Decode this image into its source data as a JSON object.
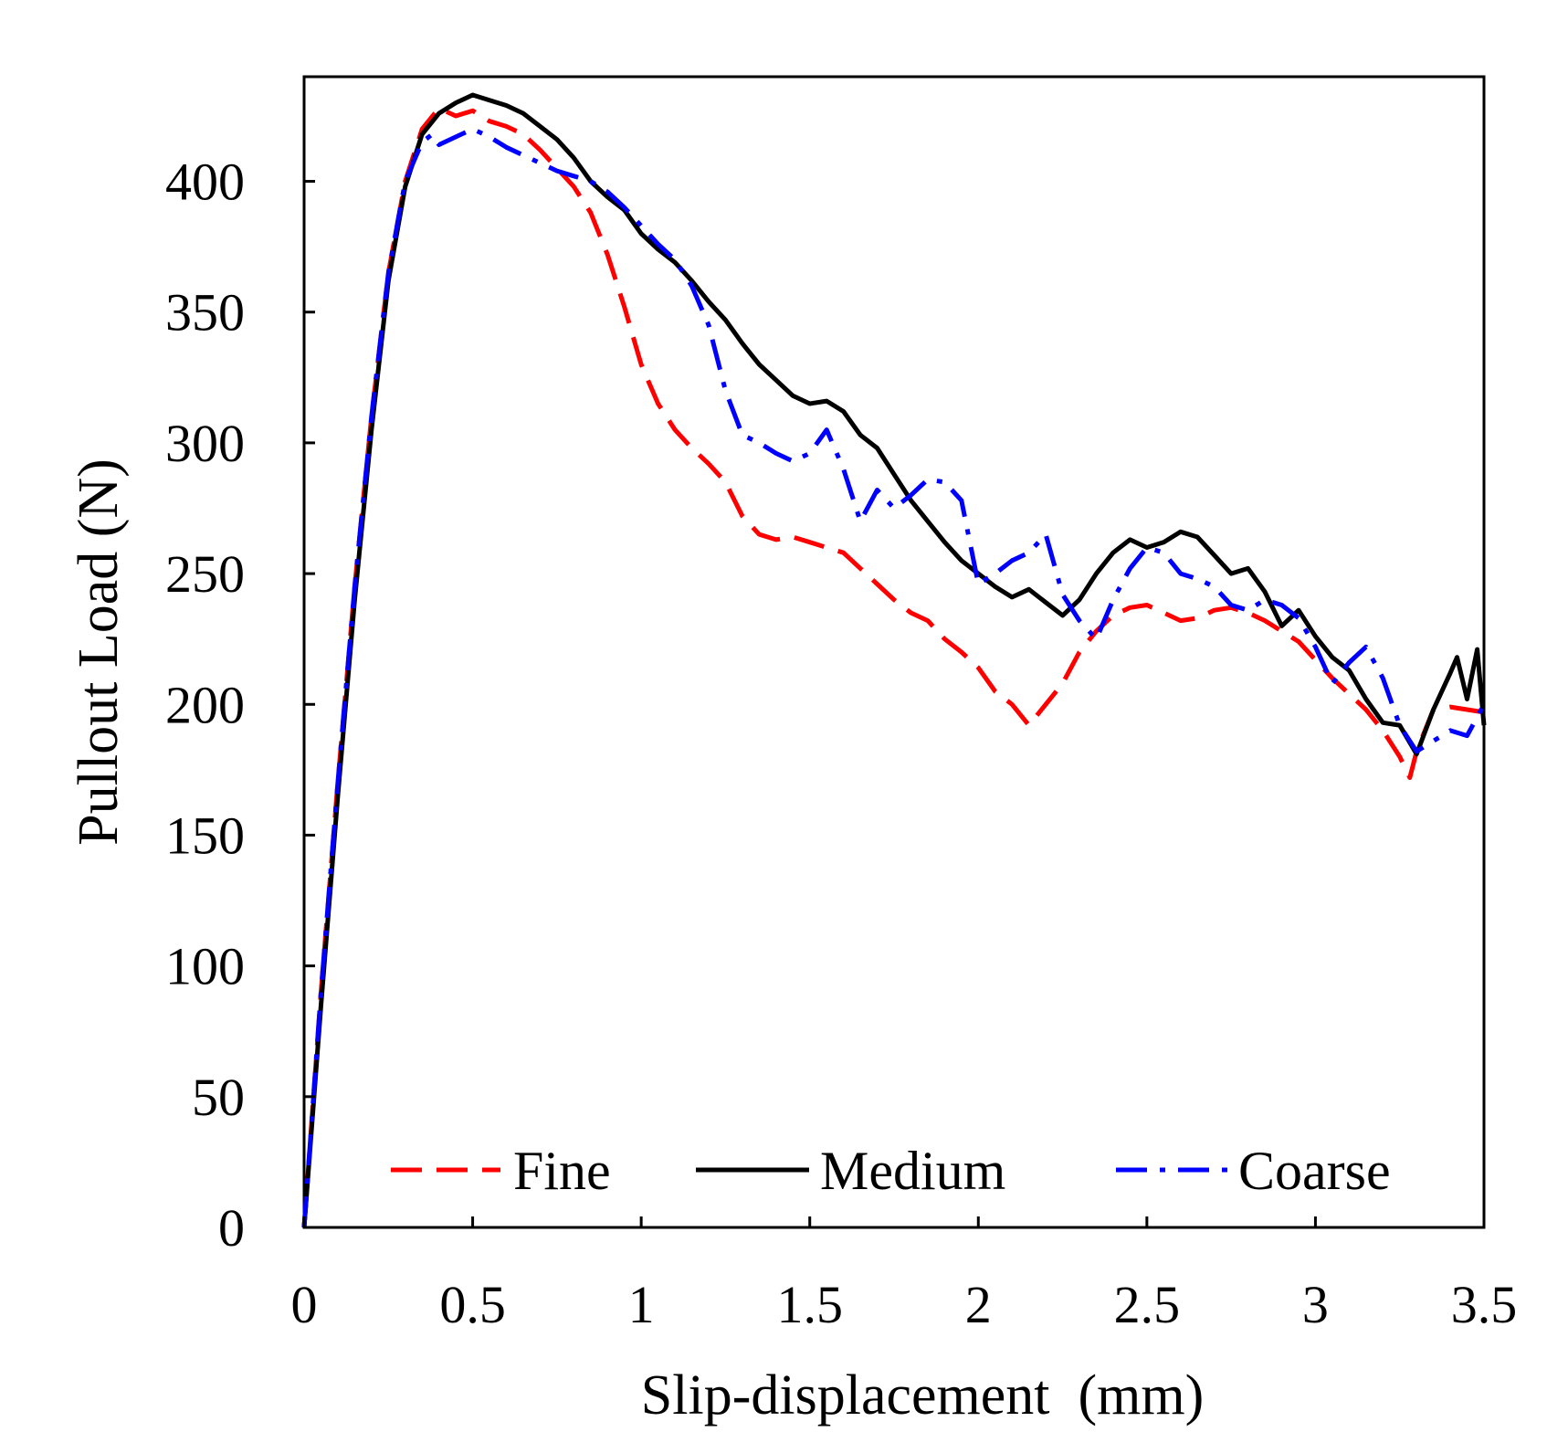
{
  "chart_data": {
    "type": "line",
    "title": "",
    "xlabel": "Slip-displacement  (mm)",
    "ylabel": "Pullout Load (N)",
    "xlim": [
      0,
      3.5
    ],
    "ylim": [
      0,
      440
    ],
    "xticks": [
      "0",
      "0.5",
      "1",
      "1.5",
      "2",
      "2.5",
      "3",
      "3.5"
    ],
    "yticks": [
      "0",
      "50",
      "100",
      "150",
      "200",
      "250",
      "300",
      "350",
      "400"
    ],
    "grid": false,
    "legend_position": "bottom",
    "series": [
      {
        "name": "Fine",
        "color": "#ff0000",
        "style": "dashed",
        "x": [
          0,
          0.05,
          0.1,
          0.15,
          0.2,
          0.25,
          0.3,
          0.35,
          0.4,
          0.45,
          0.5,
          0.55,
          0.6,
          0.65,
          0.7,
          0.75,
          0.8,
          0.85,
          0.9,
          0.95,
          1.0,
          1.05,
          1.1,
          1.15,
          1.2,
          1.25,
          1.3,
          1.35,
          1.4,
          1.45,
          1.5,
          1.55,
          1.6,
          1.65,
          1.7,
          1.75,
          1.8,
          1.85,
          1.9,
          1.95,
          2.0,
          2.05,
          2.1,
          2.15,
          2.2,
          2.25,
          2.3,
          2.35,
          2.4,
          2.45,
          2.5,
          2.55,
          2.6,
          2.65,
          2.7,
          2.75,
          2.8,
          2.85,
          2.9,
          2.95,
          3.0,
          3.05,
          3.1,
          3.15,
          3.2,
          3.25,
          3.28,
          3.3,
          3.35,
          3.4,
          3.45,
          3.5
        ],
        "y": [
          0,
          90,
          170,
          245,
          310,
          365,
          400,
          420,
          428,
          425,
          427,
          423,
          421,
          418,
          412,
          405,
          398,
          388,
          372,
          352,
          330,
          315,
          305,
          298,
          292,
          285,
          272,
          265,
          263,
          264,
          262,
          260,
          258,
          252,
          246,
          240,
          235,
          232,
          225,
          220,
          214,
          205,
          200,
          192,
          200,
          208,
          220,
          228,
          234,
          237,
          238,
          235,
          232,
          233,
          236,
          237,
          235,
          232,
          228,
          224,
          217,
          210,
          204,
          198,
          190,
          180,
          172,
          182,
          198,
          199,
          198,
          197
        ]
      },
      {
        "name": "Medium",
        "color": "#000000",
        "style": "solid",
        "x": [
          0,
          0.05,
          0.1,
          0.15,
          0.2,
          0.25,
          0.3,
          0.35,
          0.4,
          0.45,
          0.5,
          0.55,
          0.6,
          0.65,
          0.7,
          0.75,
          0.8,
          0.85,
          0.9,
          0.95,
          1.0,
          1.05,
          1.1,
          1.15,
          1.2,
          1.25,
          1.3,
          1.35,
          1.4,
          1.45,
          1.5,
          1.55,
          1.6,
          1.65,
          1.7,
          1.75,
          1.8,
          1.85,
          1.9,
          1.95,
          2.0,
          2.05,
          2.1,
          2.15,
          2.2,
          2.25,
          2.3,
          2.35,
          2.4,
          2.45,
          2.5,
          2.55,
          2.6,
          2.65,
          2.7,
          2.75,
          2.8,
          2.85,
          2.9,
          2.95,
          3.0,
          3.05,
          3.1,
          3.15,
          3.2,
          3.25,
          3.3,
          3.35,
          3.4,
          3.42,
          3.45,
          3.48,
          3.5
        ],
        "y": [
          0,
          85,
          165,
          240,
          305,
          362,
          398,
          418,
          426,
          430,
          433,
          431,
          429,
          426,
          421,
          416,
          409,
          400,
          394,
          389,
          380,
          374,
          369,
          362,
          354,
          347,
          338,
          330,
          324,
          318,
          315,
          316,
          312,
          303,
          298,
          288,
          278,
          270,
          262,
          255,
          250,
          245,
          241,
          244,
          239,
          234,
          240,
          250,
          258,
          263,
          260,
          262,
          266,
          264,
          257,
          250,
          252,
          243,
          230,
          236,
          226,
          218,
          213,
          202,
          193,
          192,
          181,
          198,
          212,
          218,
          202,
          221,
          192
        ]
      },
      {
        "name": "Coarse",
        "color": "#0000ff",
        "style": "dashdot",
        "x": [
          0,
          0.05,
          0.1,
          0.15,
          0.2,
          0.25,
          0.3,
          0.35,
          0.38,
          0.4,
          0.45,
          0.5,
          0.55,
          0.6,
          0.65,
          0.7,
          0.75,
          0.8,
          0.85,
          0.9,
          0.95,
          1.0,
          1.05,
          1.1,
          1.15,
          1.2,
          1.25,
          1.3,
          1.35,
          1.4,
          1.45,
          1.5,
          1.55,
          1.6,
          1.65,
          1.7,
          1.75,
          1.8,
          1.85,
          1.9,
          1.95,
          2.0,
          2.05,
          2.1,
          2.15,
          2.2,
          2.25,
          2.3,
          2.35,
          2.4,
          2.45,
          2.5,
          2.55,
          2.6,
          2.65,
          2.7,
          2.75,
          2.8,
          2.85,
          2.9,
          2.95,
          3.0,
          3.05,
          3.1,
          3.15,
          3.2,
          3.25,
          3.3,
          3.35,
          3.4,
          3.45,
          3.5
        ],
        "y": [
          0,
          90,
          170,
          245,
          310,
          365,
          400,
          415,
          418,
          414,
          417,
          420,
          417,
          413,
          410,
          407,
          404,
          402,
          400,
          396,
          390,
          383,
          376,
          370,
          360,
          345,
          320,
          303,
          300,
          296,
          293,
          296,
          305,
          290,
          270,
          282,
          275,
          280,
          286,
          285,
          278,
          246,
          250,
          255,
          258,
          265,
          242,
          232,
          225,
          240,
          252,
          260,
          258,
          250,
          248,
          245,
          238,
          236,
          240,
          238,
          233,
          222,
          208,
          216,
          222,
          210,
          192,
          182,
          186,
          190,
          188,
          200
        ]
      }
    ]
  }
}
